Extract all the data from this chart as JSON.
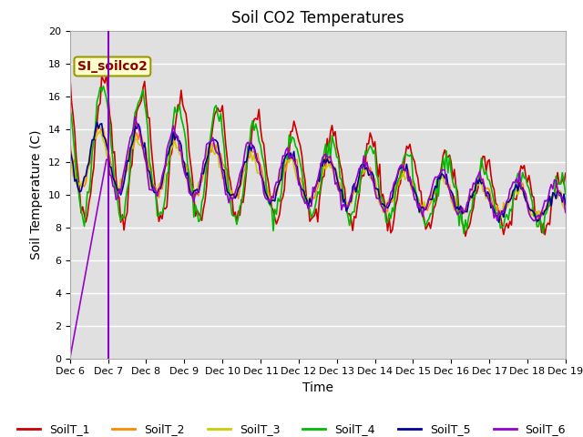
{
  "title": "Soil CO2 Temperatures",
  "xlabel": "Time",
  "ylabel": "Soil Temperature (C)",
  "ylim": [
    0,
    20
  ],
  "xlim": [
    0,
    13
  ],
  "annotation_text": "SI_soilco2",
  "bg_color": "#e0e0e0",
  "series_names": [
    "SoilT_1",
    "SoilT_2",
    "SoilT_3",
    "SoilT_4",
    "SoilT_5",
    "SoilT_6"
  ],
  "series_colors": [
    "#cc0000",
    "#ff8800",
    "#cccc00",
    "#00bb00",
    "#000099",
    "#9900cc"
  ],
  "lw": 1.2,
  "vline_x": 1.0,
  "vline_color": "#8800cc",
  "xtick_labels": [
    "Dec 6",
    "Dec 7",
    "Dec 8",
    "Dec 9",
    "Dec 10",
    "Dec 11",
    "Dec 12",
    "Dec 13",
    "Dec 14",
    "Dec 15",
    "Dec 16",
    "Dec 17",
    "Dec 18",
    "Dec 19"
  ],
  "ytick_vals": [
    0,
    2,
    4,
    6,
    8,
    10,
    12,
    14,
    16,
    18,
    20
  ],
  "figsize": [
    6.4,
    4.8
  ],
  "dpi": 100,
  "title_fontsize": 12,
  "axis_label_fontsize": 10,
  "tick_fontsize": 8,
  "legend_fontsize": 9,
  "grid_color": "#ffffff",
  "grid_lw": 1.0
}
